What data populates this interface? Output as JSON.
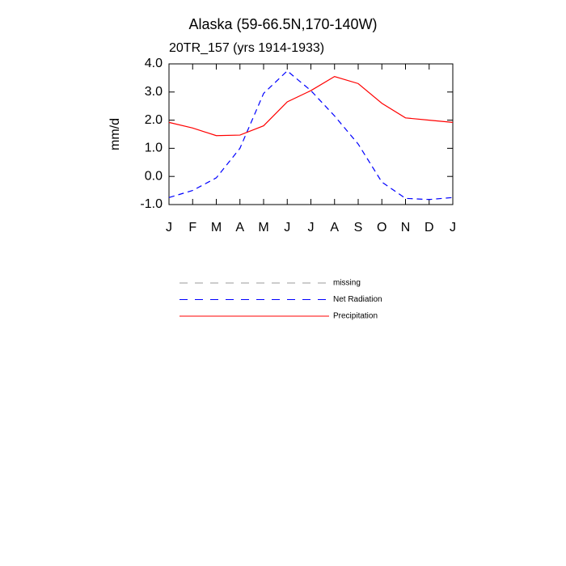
{
  "chart_data": {
    "type": "line",
    "title": "Alaska (59-66.5N,170-140W)",
    "subtitle": "20TR_157 (yrs 1914-1933)",
    "y_label": "mm/d",
    "categories": [
      "J",
      "F",
      "M",
      "A",
      "M",
      "J",
      "J",
      "A",
      "S",
      "O",
      "N",
      "D",
      "J"
    ],
    "ylim": [
      -1,
      4
    ],
    "yticks": [
      {
        "value": -1,
        "label": "-1.0"
      },
      {
        "value": 0,
        "label": "0.0"
      },
      {
        "value": 1,
        "label": "1.0"
      },
      {
        "value": 2,
        "label": "2.0"
      },
      {
        "value": 3,
        "label": "3.0"
      },
      {
        "value": 4,
        "label": "4.0"
      }
    ],
    "series": [
      {
        "name": "missing",
        "color": "#999999",
        "dash": true,
        "values": [
          null,
          null,
          null,
          null,
          null,
          null,
          null,
          null,
          null,
          null,
          null,
          null,
          null
        ]
      },
      {
        "name": "Net Radiation",
        "color": "#0000ff",
        "dash": true,
        "values": [
          -0.75,
          -0.5,
          -0.05,
          1.0,
          2.95,
          3.75,
          3.05,
          2.15,
          1.15,
          -0.2,
          -0.78,
          -0.82,
          -0.75
        ]
      },
      {
        "name": "Precipitation",
        "color": "#ff0000",
        "dash": false,
        "values": [
          1.92,
          1.72,
          1.45,
          1.47,
          1.8,
          2.65,
          3.05,
          3.55,
          3.3,
          2.6,
          2.08,
          2.0,
          1.92
        ]
      }
    ]
  }
}
